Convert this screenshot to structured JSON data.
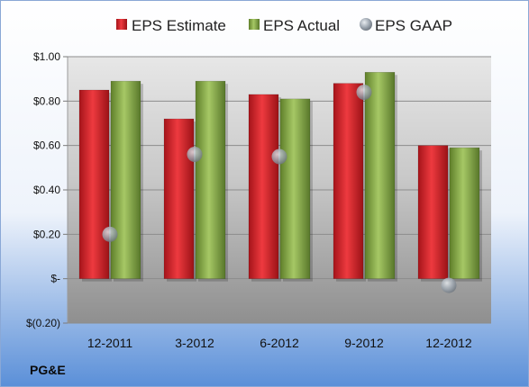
{
  "company_label": "PG&E",
  "chart_data": {
    "type": "bar",
    "categories": [
      "12-2011",
      "3-2012",
      "6-2012",
      "9-2012",
      "12-2012"
    ],
    "series": [
      {
        "name": "EPS Estimate",
        "kind": "bar",
        "color": "#d9262b",
        "values": [
          0.85,
          0.72,
          0.83,
          0.88,
          0.6
        ]
      },
      {
        "name": "EPS Actual",
        "kind": "bar",
        "color": "#8fb04a",
        "values": [
          0.89,
          0.89,
          0.81,
          0.93,
          0.59
        ]
      },
      {
        "name": "EPS GAAP",
        "kind": "marker",
        "color": "#9aa3ad",
        "values": [
          0.2,
          0.56,
          0.55,
          0.84,
          -0.03
        ]
      }
    ],
    "y_ticks": [
      {
        "value": 1.0,
        "label": "$1.00"
      },
      {
        "value": 0.8,
        "label": "$0.80"
      },
      {
        "value": 0.6,
        "label": "$0.60"
      },
      {
        "value": 0.4,
        "label": "$0.40"
      },
      {
        "value": 0.2,
        "label": "$0.20"
      },
      {
        "value": 0.0,
        "label": "$-"
      },
      {
        "value": -0.2,
        "label": "$(0.20)"
      }
    ],
    "ylim": [
      -0.2,
      1.0
    ],
    "grid": true,
    "legend_position": "top",
    "title": "",
    "xlabel": "",
    "ylabel": ""
  }
}
